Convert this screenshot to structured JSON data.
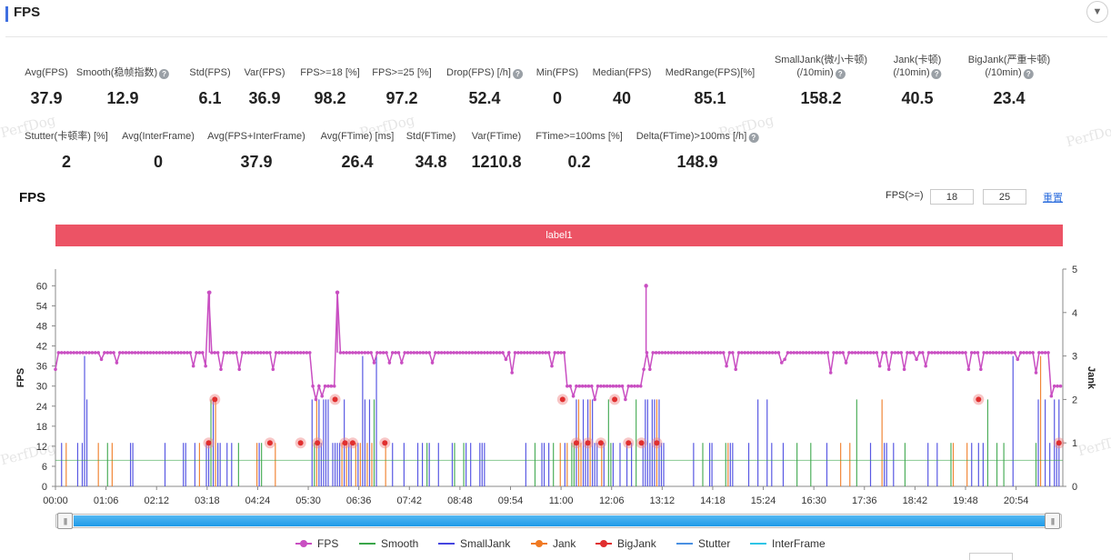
{
  "header": {
    "title": "FPS",
    "collapse_icon": "chevron-down-icon",
    "collapse_glyph": "▼"
  },
  "watermark": "PerfDog",
  "metrics_row1": [
    {
      "label": "Avg(FPS)",
      "value": "37.9",
      "help": false
    },
    {
      "label": "Smooth(稳帧指数)",
      "value": "12.9",
      "help": true
    },
    {
      "label": "Std(FPS)",
      "value": "6.1",
      "help": false
    },
    {
      "label": "Var(FPS)",
      "value": "36.9",
      "help": false
    },
    {
      "label": "FPS>=18 [%]",
      "value": "98.2",
      "help": false
    },
    {
      "label": "FPS>=25 [%]",
      "value": "97.2",
      "help": false
    },
    {
      "label": "Drop(FPS) [/h]",
      "value": "52.4",
      "help": true
    },
    {
      "label": "Min(FPS)",
      "value": "0",
      "help": false
    },
    {
      "label": "Median(FPS)",
      "value": "40",
      "help": false
    },
    {
      "label": "MedRange(FPS)[%]",
      "value": "85.1",
      "help": false
    },
    {
      "label": "SmallJank(微小卡顿)",
      "label2": "(/10min)",
      "value": "158.2",
      "help": true
    },
    {
      "label": "Jank(卡顿)",
      "label2": "(/10min)",
      "value": "40.5",
      "help": true
    },
    {
      "label": "BigJank(严重卡顿)",
      "label2": "(/10min)",
      "value": "23.4",
      "help": true
    }
  ],
  "metrics_row2": [
    {
      "label": "Stutter(卡顿率) [%]",
      "value": "2",
      "help": false
    },
    {
      "label": "Avg(InterFrame)",
      "value": "0",
      "help": false
    },
    {
      "label": "Avg(FPS+InterFrame)",
      "value": "37.9",
      "help": false
    },
    {
      "label": "Avg(FTime) [ms]",
      "value": "26.4",
      "help": false
    },
    {
      "label": "Std(FTime)",
      "value": "34.8",
      "help": false
    },
    {
      "label": "Var(FTime)",
      "value": "1210.8",
      "help": false
    },
    {
      "label": "FTime>=100ms [%]",
      "value": "0.2",
      "help": false
    },
    {
      "label": "Delta(FTime)>100ms [/h]",
      "value": "148.9",
      "help": true
    }
  ],
  "chart_section": {
    "title": "FPS",
    "threshold_label": "FPS(>=)",
    "threshold_1": "18",
    "threshold_2": "25",
    "reset_label": "重置",
    "band_label": "label1"
  },
  "colors": {
    "fps": "#c94fc2",
    "smooth": "#3aa64a",
    "smalljank": "#4646e0",
    "jank": "#f07a22",
    "bigjank": "#e02f2f",
    "stutter": "#4a90e2",
    "interframe": "#2ec4e6",
    "band": "#ec5365"
  },
  "chart_data": {
    "type": "line",
    "x_ticks": [
      "00:00",
      "01:06",
      "02:12",
      "03:18",
      "04:24",
      "05:30",
      "06:36",
      "07:42",
      "08:48",
      "09:54",
      "11:00",
      "12:06",
      "13:12",
      "14:18",
      "15:24",
      "16:30",
      "17:36",
      "18:42",
      "19:48",
      "20:54"
    ],
    "x_range": [
      "00:00",
      "21:55"
    ],
    "y_left": {
      "label": "FPS",
      "range": [
        0,
        65
      ],
      "ticks": [
        0,
        6,
        12,
        18,
        24,
        30,
        36,
        42,
        48,
        54,
        60
      ]
    },
    "y_right": {
      "label": "Jank",
      "range": [
        0,
        5
      ],
      "ticks": [
        0,
        1,
        2,
        3,
        4,
        5
      ]
    },
    "fps_segments": [
      {
        "from": "00:00",
        "to": "03:18",
        "fps": 40
      },
      {
        "from": "03:20",
        "to": "03:22",
        "fps": 58
      },
      {
        "from": "03:22",
        "to": "05:35",
        "fps": 40
      },
      {
        "from": "05:35",
        "to": "06:05",
        "fps": 30
      },
      {
        "from": "06:05",
        "to": "06:12",
        "fps": 58
      },
      {
        "from": "06:12",
        "to": "07:20",
        "fps": 40
      },
      {
        "from": "07:20",
        "to": "11:08",
        "fps": 40
      },
      {
        "from": "11:08",
        "to": "12:45",
        "fps": 30
      },
      {
        "from": "12:50",
        "to": "12:52",
        "fps": 60
      },
      {
        "from": "12:52",
        "to": "21:40",
        "fps": 40
      },
      {
        "from": "21:40",
        "to": "21:55",
        "fps": 30
      }
    ],
    "jank_events_approx": {
      "bigjank_times": [
        "03:20",
        "03:28",
        "04:40",
        "05:20",
        "05:42",
        "06:05",
        "06:18",
        "06:28",
        "07:10",
        "11:02",
        "11:20",
        "11:35",
        "11:52",
        "12:10",
        "12:28",
        "12:45",
        "13:05",
        "20:05",
        "21:50"
      ],
      "jank_levels": "mostly 1 (FPS 12), a few 2 (FPS 26)"
    },
    "legend": [
      "FPS",
      "Smooth",
      "SmallJank",
      "Jank",
      "BigJank",
      "Stutter",
      "InterFrame"
    ],
    "legend_position": "bottom",
    "grid": false
  }
}
